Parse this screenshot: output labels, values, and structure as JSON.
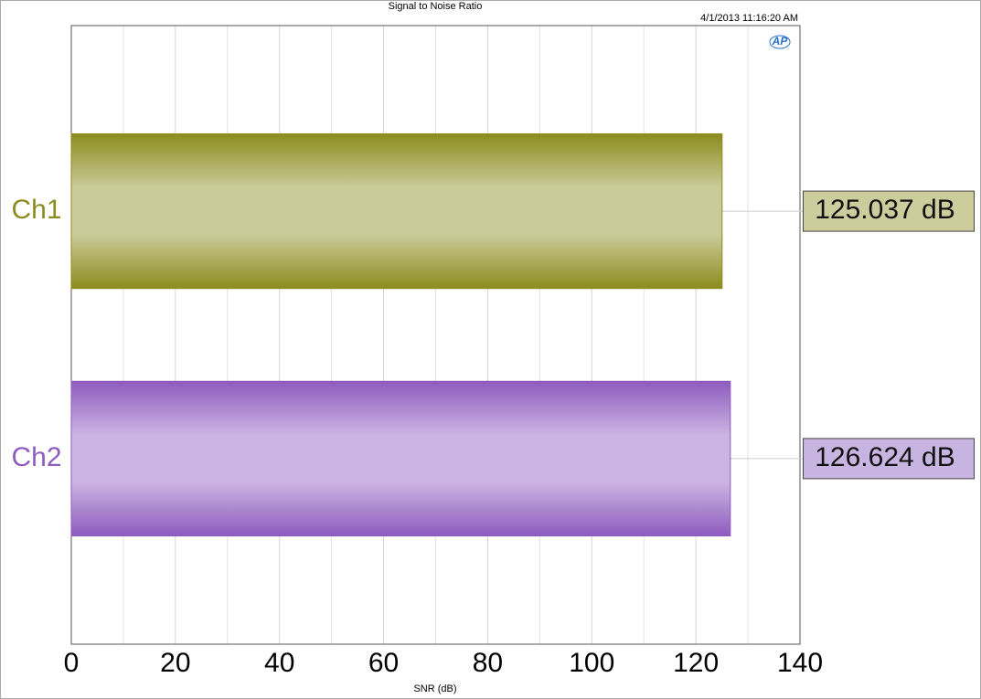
{
  "chart_data": {
    "type": "barh",
    "title": "Signal to Noise Ratio",
    "timestamp": "4/1/2013 11:16:20 AM",
    "logo": "AP",
    "xlabel": "SNR (dB)",
    "categories": [
      "Ch1",
      "Ch2"
    ],
    "values": [
      125.037,
      126.624
    ],
    "value_labels": [
      "125.037 dB",
      "126.624 dB"
    ],
    "colors": [
      "#8c8c1e",
      "#8e5bbf"
    ],
    "value_label_colors": [
      "#cccc9c",
      "#c8b4e0"
    ],
    "xlim": [
      0,
      140
    ],
    "xticks": [
      0,
      20,
      40,
      60,
      80,
      100,
      120,
      140
    ],
    "xminorticks": [
      10,
      30,
      50,
      70,
      90,
      110,
      130
    ],
    "grid": true
  }
}
